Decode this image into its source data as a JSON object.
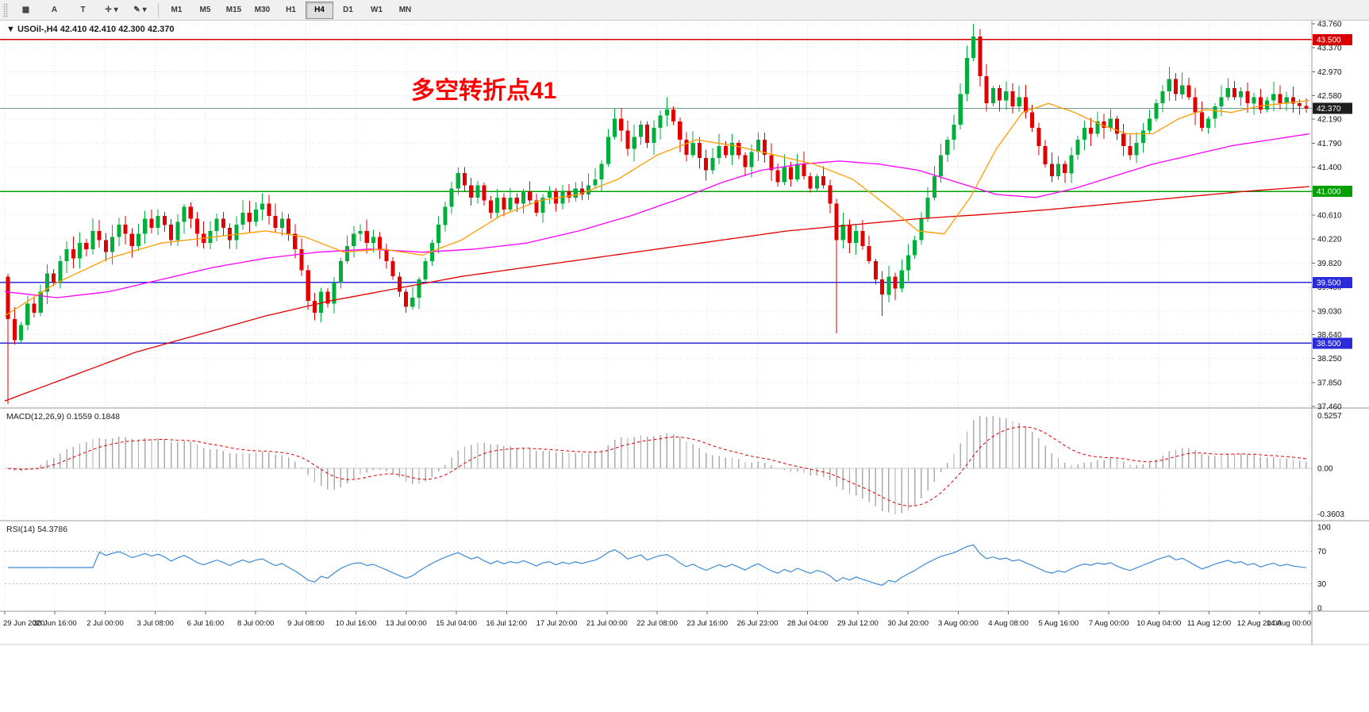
{
  "toolbar": {
    "left_buttons": [
      {
        "name": "new-chart",
        "glyph": "▦",
        "dropdown": false
      },
      {
        "name": "text-a",
        "glyph": "A",
        "dropdown": false
      },
      {
        "name": "text-t",
        "glyph": "T",
        "dropdown": false
      },
      {
        "name": "crosshair",
        "glyph": "✛",
        "dropdown": true
      },
      {
        "name": "draw",
        "glyph": "✎",
        "dropdown": true
      }
    ],
    "timeframes": [
      "M1",
      "M5",
      "M15",
      "M30",
      "H1",
      "H4",
      "D1",
      "W1",
      "MN"
    ],
    "active_timeframe": "H4"
  },
  "chart": {
    "collapse_icon": "▼",
    "symbol_line": "USOil-,H4 42.410 42.410 42.300 42.370",
    "annotation": {
      "text": "多空转折点41",
      "color": "#ff0000"
    }
  },
  "chart_data": {
    "type": "candlestick",
    "symbol": "USOil",
    "period": "H4",
    "ohlc": {
      "open": "42.410",
      "high": "42.410",
      "low": "42.300",
      "close": "42.370"
    },
    "current_price": "42.370",
    "colors": {
      "up": "#00ae3c",
      "down": "#e00000"
    },
    "first_open": 39.6,
    "closes": [
      38.9,
      38.55,
      38.8,
      39.15,
      39.0,
      39.35,
      39.65,
      39.5,
      39.85,
      40.05,
      39.9,
      40.15,
      40.05,
      40.35,
      40.2,
      40.0,
      40.25,
      40.45,
      40.3,
      40.1,
      40.3,
      40.55,
      40.4,
      40.6,
      40.45,
      40.2,
      40.5,
      40.75,
      40.55,
      40.3,
      40.15,
      40.35,
      40.55,
      40.4,
      40.2,
      40.45,
      40.65,
      40.5,
      40.7,
      40.8,
      40.6,
      40.4,
      40.55,
      40.3,
      40.05,
      39.7,
      39.2,
      39.0,
      39.35,
      39.15,
      39.5,
      39.85,
      40.1,
      40.3,
      40.35,
      40.15,
      40.25,
      40.05,
      39.85,
      39.6,
      39.35,
      39.1,
      39.25,
      39.55,
      39.85,
      40.15,
      40.45,
      40.75,
      41.05,
      41.3,
      41.1,
      40.9,
      41.1,
      40.85,
      40.65,
      40.9,
      40.7,
      40.9,
      40.8,
      41.0,
      40.85,
      40.65,
      40.9,
      41.0,
      40.8,
      41.0,
      40.9,
      41.05,
      40.95,
      41.1,
      41.2,
      41.45,
      41.9,
      42.2,
      42.0,
      41.7,
      41.9,
      42.1,
      41.8,
      42.05,
      42.25,
      42.35,
      42.15,
      41.85,
      41.6,
      41.8,
      41.55,
      41.35,
      41.55,
      41.75,
      41.6,
      41.8,
      41.6,
      41.4,
      41.65,
      41.85,
      41.6,
      41.35,
      41.15,
      41.4,
      41.2,
      41.45,
      41.25,
      41.05,
      41.25,
      41.1,
      40.8,
      40.2,
      40.45,
      40.15,
      40.35,
      40.1,
      39.85,
      39.55,
      39.3,
      39.6,
      39.4,
      39.7,
      39.95,
      40.2,
      40.55,
      40.9,
      41.25,
      41.6,
      41.85,
      42.1,
      42.6,
      43.2,
      43.55,
      42.9,
      42.45,
      42.7,
      42.5,
      42.65,
      42.4,
      42.55,
      42.3,
      42.05,
      41.75,
      41.45,
      41.25,
      41.45,
      41.3,
      41.6,
      41.85,
      42.05,
      41.95,
      42.15,
      42.05,
      42.2,
      41.95,
      41.75,
      41.6,
      41.8,
      42.0,
      42.2,
      42.45,
      42.65,
      42.85,
      42.6,
      42.75,
      42.55,
      42.3,
      42.05,
      42.2,
      42.4,
      42.55,
      42.7,
      42.55,
      42.65,
      42.45,
      42.55,
      42.35,
      42.5,
      42.6,
      42.45,
      42.55,
      42.45,
      42.41,
      42.37
    ],
    "wick_overrides": {
      "0": {
        "low": 37.5
      },
      "127": {
        "low": 38.66
      },
      "134": {
        "low": 38.95
      },
      "148": {
        "high": 43.76
      }
    },
    "price_axis": {
      "min": 37.46,
      "max": 43.76,
      "labels": [
        {
          "t": "43.760",
          "v": 43.76
        },
        {
          "t": "43.370",
          "v": 43.37
        },
        {
          "t": "42.970",
          "v": 42.97
        },
        {
          "t": "42.580",
          "v": 42.58
        },
        {
          "t": "42.190",
          "v": 42.19
        },
        {
          "t": "41.790",
          "v": 41.79
        },
        {
          "t": "41.400",
          "v": 41.4
        },
        {
          "t": "41.000",
          "v": 41.0
        },
        {
          "t": "40.610",
          "v": 40.61
        },
        {
          "t": "40.220",
          "v": 40.22
        },
        {
          "t": "39.820",
          "v": 39.82
        },
        {
          "t": "39.430",
          "v": 39.43
        },
        {
          "t": "39.030",
          "v": 39.03
        },
        {
          "t": "38.640",
          "v": 38.64
        },
        {
          "t": "38.250",
          "v": 38.25
        },
        {
          "t": "37.850",
          "v": 37.85
        },
        {
          "t": "37.460",
          "v": 37.46
        }
      ]
    },
    "level_lines": [
      {
        "name": "resistance-43.5",
        "price": 43.5,
        "color": "#d90000",
        "width": 1.4
      },
      {
        "name": "pivot-41.0",
        "price": 41.0,
        "color": "#00a000",
        "width": 1.6
      },
      {
        "name": "support-39.5",
        "price": 39.5,
        "color": "#2b2bd9",
        "width": 1.6
      },
      {
        "name": "support-38.5",
        "price": 38.5,
        "color": "#2b2bd9",
        "width": 1.6
      },
      {
        "name": "current-price-line",
        "price": 42.37,
        "color": "#6d9795",
        "width": 1
      }
    ],
    "price_tags": [
      {
        "t": "43.500",
        "v": 43.5,
        "bg": "#d90000"
      },
      {
        "t": "41.000",
        "v": 41.0,
        "bg": "#00a000"
      },
      {
        "t": "39.500",
        "v": 39.5,
        "bg": "#2b2bd9"
      },
      {
        "t": "38.500",
        "v": 38.5,
        "bg": "#2b2bd9"
      },
      {
        "t": "42.370",
        "v": 42.37,
        "bg": "#1f1f1f"
      }
    ],
    "moving_averages": [
      {
        "name": "ma-slow-red",
        "color": "#e00000",
        "points": [
          [
            0,
            37.55
          ],
          [
            0.05,
            37.95
          ],
          [
            0.1,
            38.35
          ],
          [
            0.15,
            38.65
          ],
          [
            0.2,
            38.95
          ],
          [
            0.25,
            39.2
          ],
          [
            0.3,
            39.4
          ],
          [
            0.35,
            39.6
          ],
          [
            0.4,
            39.75
          ],
          [
            0.45,
            39.9
          ],
          [
            0.5,
            40.05
          ],
          [
            0.55,
            40.2
          ],
          [
            0.6,
            40.35
          ],
          [
            0.65,
            40.45
          ],
          [
            0.7,
            40.55
          ],
          [
            0.75,
            40.62
          ],
          [
            0.8,
            40.7
          ],
          [
            0.85,
            40.8
          ],
          [
            0.9,
            40.9
          ],
          [
            0.95,
            41.0
          ],
          [
            1,
            41.08
          ]
        ]
      },
      {
        "name": "ma-mid-magenta",
        "color": "#ff00ff",
        "points": [
          [
            0,
            39.35
          ],
          [
            0.04,
            39.25
          ],
          [
            0.08,
            39.35
          ],
          [
            0.12,
            39.55
          ],
          [
            0.16,
            39.75
          ],
          [
            0.2,
            39.9
          ],
          [
            0.24,
            40.0
          ],
          [
            0.28,
            40.05
          ],
          [
            0.32,
            40.0
          ],
          [
            0.36,
            40.05
          ],
          [
            0.4,
            40.15
          ],
          [
            0.44,
            40.35
          ],
          [
            0.48,
            40.6
          ],
          [
            0.52,
            40.9
          ],
          [
            0.55,
            41.15
          ],
          [
            0.58,
            41.35
          ],
          [
            0.61,
            41.45
          ],
          [
            0.64,
            41.5
          ],
          [
            0.67,
            41.45
          ],
          [
            0.7,
            41.35
          ],
          [
            0.73,
            41.15
          ],
          [
            0.76,
            40.95
          ],
          [
            0.79,
            40.9
          ],
          [
            0.82,
            41.05
          ],
          [
            0.85,
            41.25
          ],
          [
            0.88,
            41.45
          ],
          [
            0.91,
            41.6
          ],
          [
            0.94,
            41.75
          ],
          [
            0.97,
            41.85
          ],
          [
            1,
            41.95
          ]
        ]
      },
      {
        "name": "ma-fast-orange",
        "color": "#ff9c00",
        "points": [
          [
            0,
            38.95
          ],
          [
            0.04,
            39.5
          ],
          [
            0.08,
            39.9
          ],
          [
            0.12,
            40.15
          ],
          [
            0.16,
            40.25
          ],
          [
            0.2,
            40.35
          ],
          [
            0.23,
            40.25
          ],
          [
            0.26,
            40.0
          ],
          [
            0.29,
            40.05
          ],
          [
            0.32,
            39.95
          ],
          [
            0.35,
            40.2
          ],
          [
            0.38,
            40.6
          ],
          [
            0.41,
            40.85
          ],
          [
            0.44,
            40.95
          ],
          [
            0.47,
            41.2
          ],
          [
            0.5,
            41.6
          ],
          [
            0.53,
            41.85
          ],
          [
            0.56,
            41.75
          ],
          [
            0.59,
            41.6
          ],
          [
            0.62,
            41.45
          ],
          [
            0.65,
            41.2
          ],
          [
            0.68,
            40.7
          ],
          [
            0.7,
            40.35
          ],
          [
            0.72,
            40.3
          ],
          [
            0.74,
            40.9
          ],
          [
            0.76,
            41.7
          ],
          [
            0.78,
            42.3
          ],
          [
            0.8,
            42.45
          ],
          [
            0.82,
            42.3
          ],
          [
            0.84,
            42.1
          ],
          [
            0.86,
            41.95
          ],
          [
            0.88,
            41.95
          ],
          [
            0.9,
            42.2
          ],
          [
            0.92,
            42.35
          ],
          [
            0.94,
            42.3
          ],
          [
            0.96,
            42.4
          ],
          [
            0.98,
            42.45
          ],
          [
            1,
            42.5
          ]
        ]
      }
    ],
    "macd": {
      "label": "MACD(12,26,9)",
      "value_main": "0.1559",
      "value_signal": "0.1848",
      "fast": 12,
      "slow": 26,
      "signal": 9,
      "axis_labels": [
        "0.5257",
        "0.00",
        "-0.3603"
      ]
    },
    "rsi": {
      "label": "RSI(14)",
      "value": "54.3786",
      "period": 14,
      "levels": [
        70,
        30
      ],
      "axis_labels": [
        "100",
        "70",
        "30",
        "0"
      ]
    },
    "time_labels": [
      "29 Jun 2020",
      "30 Jun 16:00",
      "2 Jul 00:00",
      "3 Jul 08:00",
      "6 Jul 16:00",
      "8 Jul 00:00",
      "9 Jul 08:00",
      "10 Jul 16:00",
      "13 Jul 00:00",
      "15 Jul 04:00",
      "16 Jul 12:00",
      "17 Jul 20:00",
      "21 Jul 00:00",
      "22 Jul 08:00",
      "23 Jul 16:00",
      "26 Jul 23:00",
      "28 Jul 04:00",
      "29 Jul 12:00",
      "30 Jul 20:00",
      "3 Aug 00:00",
      "4 Aug 08:00",
      "5 Aug 16:00",
      "7 Aug 00:00",
      "10 Aug 04:00",
      "11 Aug 12:00",
      "12 Aug 20:00",
      "14 Aug 00:00"
    ]
  }
}
